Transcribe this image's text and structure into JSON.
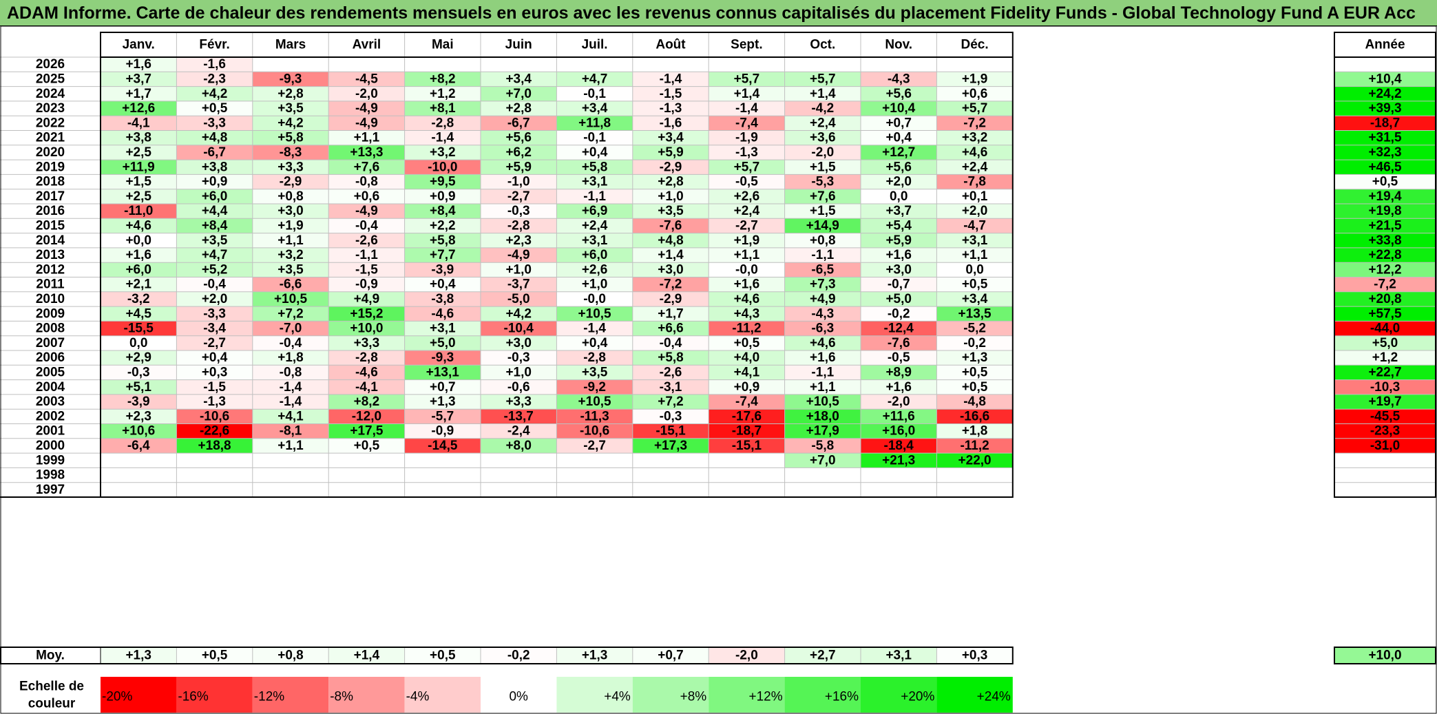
{
  "title": "ADAM Informe. Carte de chaleur des rendements mensuels en euros avec les revenus connus capitalisés du placement Fidelity Funds - Global Technology Fund A EUR Acc",
  "colors": {
    "negative_max": "#ff0000",
    "neutral": "#ffffff",
    "positive_max": "#00ee00",
    "title_bg": "#8fd07d"
  },
  "chart_data": {
    "type": "heatmap",
    "title": "ADAM Informe. Carte de chaleur des rendements mensuels en euros avec les revenus connus capitalisés du placement Fidelity Funds - Global Technology Fund A EUR Acc",
    "months": [
      "Janv.",
      "Févr.",
      "Mars",
      "Avril",
      "Mai",
      "Juin",
      "Juil.",
      "Août",
      "Sept.",
      "Oct.",
      "Nov.",
      "Déc."
    ],
    "year_header": "Année",
    "rows": [
      {
        "year": "2026",
        "values": [
          "+1,6",
          "-1,6",
          "",
          "",
          "",
          "",
          "",
          "",
          "",
          "",
          "",
          ""
        ],
        "annual": ""
      },
      {
        "year": "2025",
        "values": [
          "+3,7",
          "-2,3",
          "-9,3",
          "-4,5",
          "+8,2",
          "+3,4",
          "+4,7",
          "-1,4",
          "+5,7",
          "+5,7",
          "-4,3",
          "+1,9"
        ],
        "annual": "+10,4"
      },
      {
        "year": "2024",
        "values": [
          "+1,7",
          "+4,2",
          "+2,8",
          "-2,0",
          "+1,2",
          "+7,0",
          "-0,1",
          "-1,5",
          "+1,4",
          "+1,4",
          "+5,6",
          "+0,6"
        ],
        "annual": "+24,2"
      },
      {
        "year": "2023",
        "values": [
          "+12,6",
          "+0,5",
          "+3,5",
          "-4,9",
          "+8,1",
          "+2,8",
          "+3,4",
          "-1,3",
          "-1,4",
          "-4,2",
          "+10,4",
          "+5,7"
        ],
        "annual": "+39,3"
      },
      {
        "year": "2022",
        "values": [
          "-4,1",
          "-3,3",
          "+4,2",
          "-4,9",
          "-2,8",
          "-6,7",
          "+11,8",
          "-1,6",
          "-7,4",
          "+2,4",
          "+0,7",
          "-7,2"
        ],
        "annual": "-18,7"
      },
      {
        "year": "2021",
        "values": [
          "+3,8",
          "+4,8",
          "+5,8",
          "+1,1",
          "-1,4",
          "+5,6",
          "-0,1",
          "+3,4",
          "-1,9",
          "+3,6",
          "+0,4",
          "+3,2"
        ],
        "annual": "+31,5"
      },
      {
        "year": "2020",
        "values": [
          "+2,5",
          "-6,7",
          "-8,3",
          "+13,3",
          "+3,2",
          "+6,2",
          "+0,4",
          "+5,9",
          "-1,3",
          "-2,0",
          "+12,7",
          "+4,6"
        ],
        "annual": "+32,3"
      },
      {
        "year": "2019",
        "values": [
          "+11,9",
          "+3,8",
          "+3,3",
          "+7,6",
          "-10,0",
          "+5,9",
          "+5,8",
          "-2,9",
          "+5,7",
          "+1,5",
          "+5,6",
          "+2,4"
        ],
        "annual": "+46,5"
      },
      {
        "year": "2018",
        "values": [
          "+1,5",
          "+0,9",
          "-2,9",
          "-0,8",
          "+9,5",
          "-1,0",
          "+3,1",
          "+2,8",
          "-0,5",
          "-5,3",
          "+2,0",
          "-7,8"
        ],
        "annual": "+0,5"
      },
      {
        "year": "2017",
        "values": [
          "+2,5",
          "+6,0",
          "+0,8",
          "+0,6",
          "+0,9",
          "-2,7",
          "-1,1",
          "+1,0",
          "+2,6",
          "+7,6",
          "0,0",
          "+0,1"
        ],
        "annual": "+19,4"
      },
      {
        "year": "2016",
        "values": [
          "-11,0",
          "+4,4",
          "+3,0",
          "-4,9",
          "+8,4",
          "-0,3",
          "+6,9",
          "+3,5",
          "+2,4",
          "+1,5",
          "+3,7",
          "+2,0"
        ],
        "annual": "+19,8"
      },
      {
        "year": "2015",
        "values": [
          "+4,6",
          "+8,4",
          "+1,9",
          "-0,4",
          "+2,2",
          "-2,8",
          "+2,4",
          "-7,6",
          "-2,7",
          "+14,9",
          "+5,4",
          "-4,7"
        ],
        "annual": "+21,5"
      },
      {
        "year": "2014",
        "values": [
          "+0,0",
          "+3,5",
          "+1,1",
          "-2,6",
          "+5,8",
          "+2,3",
          "+3,1",
          "+4,8",
          "+1,9",
          "+0,8",
          "+5,9",
          "+3,1"
        ],
        "annual": "+33,8"
      },
      {
        "year": "2013",
        "values": [
          "+1,6",
          "+4,7",
          "+3,2",
          "-1,1",
          "+7,7",
          "-4,9",
          "+6,0",
          "+1,4",
          "+1,1",
          "-1,1",
          "+1,6",
          "+1,1"
        ],
        "annual": "+22,8"
      },
      {
        "year": "2012",
        "values": [
          "+6,0",
          "+5,2",
          "+3,5",
          "-1,5",
          "-3,9",
          "+1,0",
          "+2,6",
          "+3,0",
          "-0,0",
          "-6,5",
          "+3,0",
          "0,0"
        ],
        "annual": "+12,2"
      },
      {
        "year": "2011",
        "values": [
          "+2,1",
          "-0,4",
          "-6,6",
          "-0,9",
          "+0,4",
          "-3,7",
          "+1,0",
          "-7,2",
          "+1,6",
          "+7,3",
          "-0,7",
          "+0,5"
        ],
        "annual": "-7,2"
      },
      {
        "year": "2010",
        "values": [
          "-3,2",
          "+2,0",
          "+10,5",
          "+4,9",
          "-3,8",
          "-5,0",
          "-0,0",
          "-2,9",
          "+4,6",
          "+4,9",
          "+5,0",
          "+3,4"
        ],
        "annual": "+20,8"
      },
      {
        "year": "2009",
        "values": [
          "+4,5",
          "-3,3",
          "+7,2",
          "+15,2",
          "-4,6",
          "+4,2",
          "+10,5",
          "+1,7",
          "+4,3",
          "-4,3",
          "-0,2",
          "+13,5"
        ],
        "annual": "+57,5"
      },
      {
        "year": "2008",
        "values": [
          "-15,5",
          "-3,4",
          "-7,0",
          "+10,0",
          "+3,1",
          "-10,4",
          "-1,4",
          "+6,6",
          "-11,2",
          "-6,3",
          "-12,4",
          "-5,2"
        ],
        "annual": "-44,0"
      },
      {
        "year": "2007",
        "values": [
          "0,0",
          "-2,7",
          "-0,4",
          "+3,3",
          "+5,0",
          "+3,0",
          "+0,4",
          "-0,4",
          "+0,5",
          "+4,6",
          "-7,6",
          "-0,2"
        ],
        "annual": "+5,0"
      },
      {
        "year": "2006",
        "values": [
          "+2,9",
          "+0,4",
          "+1,8",
          "-2,8",
          "-9,3",
          "-0,3",
          "-2,8",
          "+5,8",
          "+4,0",
          "+1,6",
          "-0,5",
          "+1,3"
        ],
        "annual": "+1,2"
      },
      {
        "year": "2005",
        "values": [
          "-0,3",
          "+0,3",
          "-0,8",
          "-4,6",
          "+13,1",
          "+1,0",
          "+3,5",
          "-2,6",
          "+4,1",
          "-1,1",
          "+8,9",
          "+0,5"
        ],
        "annual": "+22,7"
      },
      {
        "year": "2004",
        "values": [
          "+5,1",
          "-1,5",
          "-1,4",
          "-4,1",
          "+0,7",
          "-0,6",
          "-9,2",
          "-3,1",
          "+0,9",
          "+1,1",
          "+1,6",
          "+0,5"
        ],
        "annual": "-10,3"
      },
      {
        "year": "2003",
        "values": [
          "-3,9",
          "-1,3",
          "-1,4",
          "+8,2",
          "+1,3",
          "+3,3",
          "+10,5",
          "+7,2",
          "-7,4",
          "+10,5",
          "-2,0",
          "-4,8"
        ],
        "annual": "+19,7"
      },
      {
        "year": "2002",
        "values": [
          "+2,3",
          "-10,6",
          "+4,1",
          "-12,0",
          "-5,7",
          "-13,7",
          "-11,3",
          "-0,3",
          "-17,6",
          "+18,0",
          "+11,6",
          "-16,6"
        ],
        "annual": "-45,5"
      },
      {
        "year": "2001",
        "values": [
          "+10,6",
          "-22,6",
          "-8,1",
          "+17,5",
          "-0,9",
          "-2,4",
          "-10,6",
          "-15,1",
          "-18,7",
          "+17,9",
          "+16,0",
          "+1,8"
        ],
        "annual": "-23,3"
      },
      {
        "year": "2000",
        "values": [
          "-6,4",
          "+18,8",
          "+1,1",
          "+0,5",
          "-14,5",
          "+8,0",
          "-2,7",
          "+17,3",
          "-15,1",
          "-5,8",
          "-18,4",
          "-11,2"
        ],
        "annual": "-31,0"
      },
      {
        "year": "1999",
        "values": [
          "",
          "",
          "",
          "",
          "",
          "",
          "",
          "",
          "",
          "+7,0",
          "+21,3",
          "+22,0"
        ],
        "annual": ""
      },
      {
        "year": "1998",
        "values": [
          "",
          "",
          "",
          "",
          "",
          "",
          "",
          "",
          "",
          "",
          "",
          ""
        ],
        "annual": ""
      },
      {
        "year": "1997",
        "values": [
          "",
          "",
          "",
          "",
          "",
          "",
          "",
          "",
          "",
          "",
          "",
          ""
        ],
        "annual": ""
      }
    ],
    "average": {
      "label": "Moy.",
      "values": [
        "+1,3",
        "+0,5",
        "+0,8",
        "+1,4",
        "+0,5",
        "-0,2",
        "+1,3",
        "+0,7",
        "-2,0",
        "+2,7",
        "+3,1",
        "+0,3"
      ],
      "annual": "+10,0"
    },
    "scale": {
      "label": "Echelle de couleur",
      "stops": [
        "-20%",
        "-16%",
        "-12%",
        "-8%",
        "-4%",
        "0%",
        "+4%",
        "+8%",
        "+12%",
        "+16%",
        "+20%",
        "+24%"
      ]
    },
    "color_range": {
      "min": -20,
      "max": 24
    }
  }
}
